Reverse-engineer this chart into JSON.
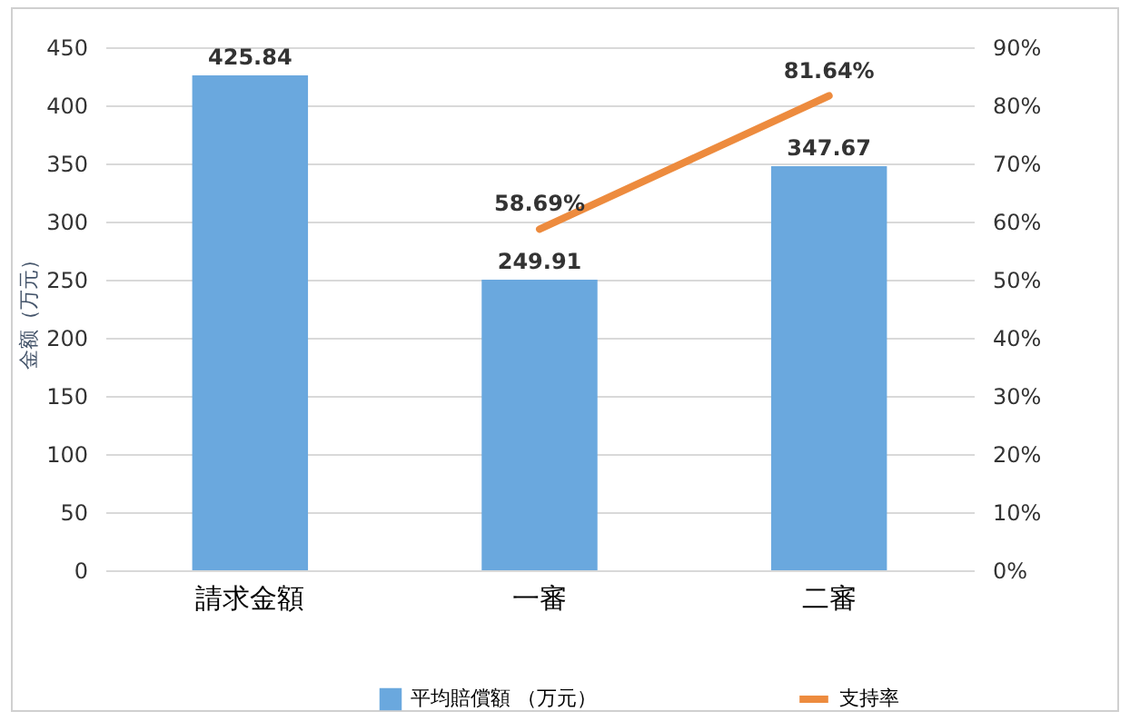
{
  "chart_data": {
    "type": "bar",
    "categories": [
      "請求金額",
      "一審",
      "二審"
    ],
    "ylabel": "金额（万元）",
    "series": [
      {
        "name": "平均賠償額 （万元）",
        "color": "#6aa8de",
        "values": [
          425.84,
          249.91,
          347.67
        ],
        "value_labels": [
          "425.84",
          "249.91",
          "347.67"
        ]
      },
      {
        "name": "支持率",
        "type": "line",
        "axis": "y2",
        "color": "#ed8b3e",
        "values": [
          null,
          58.69,
          81.64
        ],
        "value_labels": [
          null,
          "58.69%",
          "81.64%"
        ]
      }
    ],
    "ylim": [
      0,
      450
    ],
    "yticks": [
      0,
      50,
      100,
      150,
      200,
      250,
      300,
      350,
      400,
      450
    ],
    "y2lim": [
      0,
      90
    ],
    "y2ticks": [
      {
        "value": 0,
        "label": "0%"
      },
      {
        "value": 10,
        "label": "10%"
      },
      {
        "value": 20,
        "label": "20%"
      },
      {
        "value": 30,
        "label": "30%"
      },
      {
        "value": 40,
        "label": "40%"
      },
      {
        "value": 50,
        "label": "50%"
      },
      {
        "value": 60,
        "label": "60%"
      },
      {
        "value": 70,
        "label": "70%"
      },
      {
        "value": 80,
        "label": "80%"
      },
      {
        "value": 90,
        "label": "90%"
      }
    ],
    "grid": "y",
    "legend": "bottom",
    "marker": "none",
    "line_style": "solid"
  }
}
